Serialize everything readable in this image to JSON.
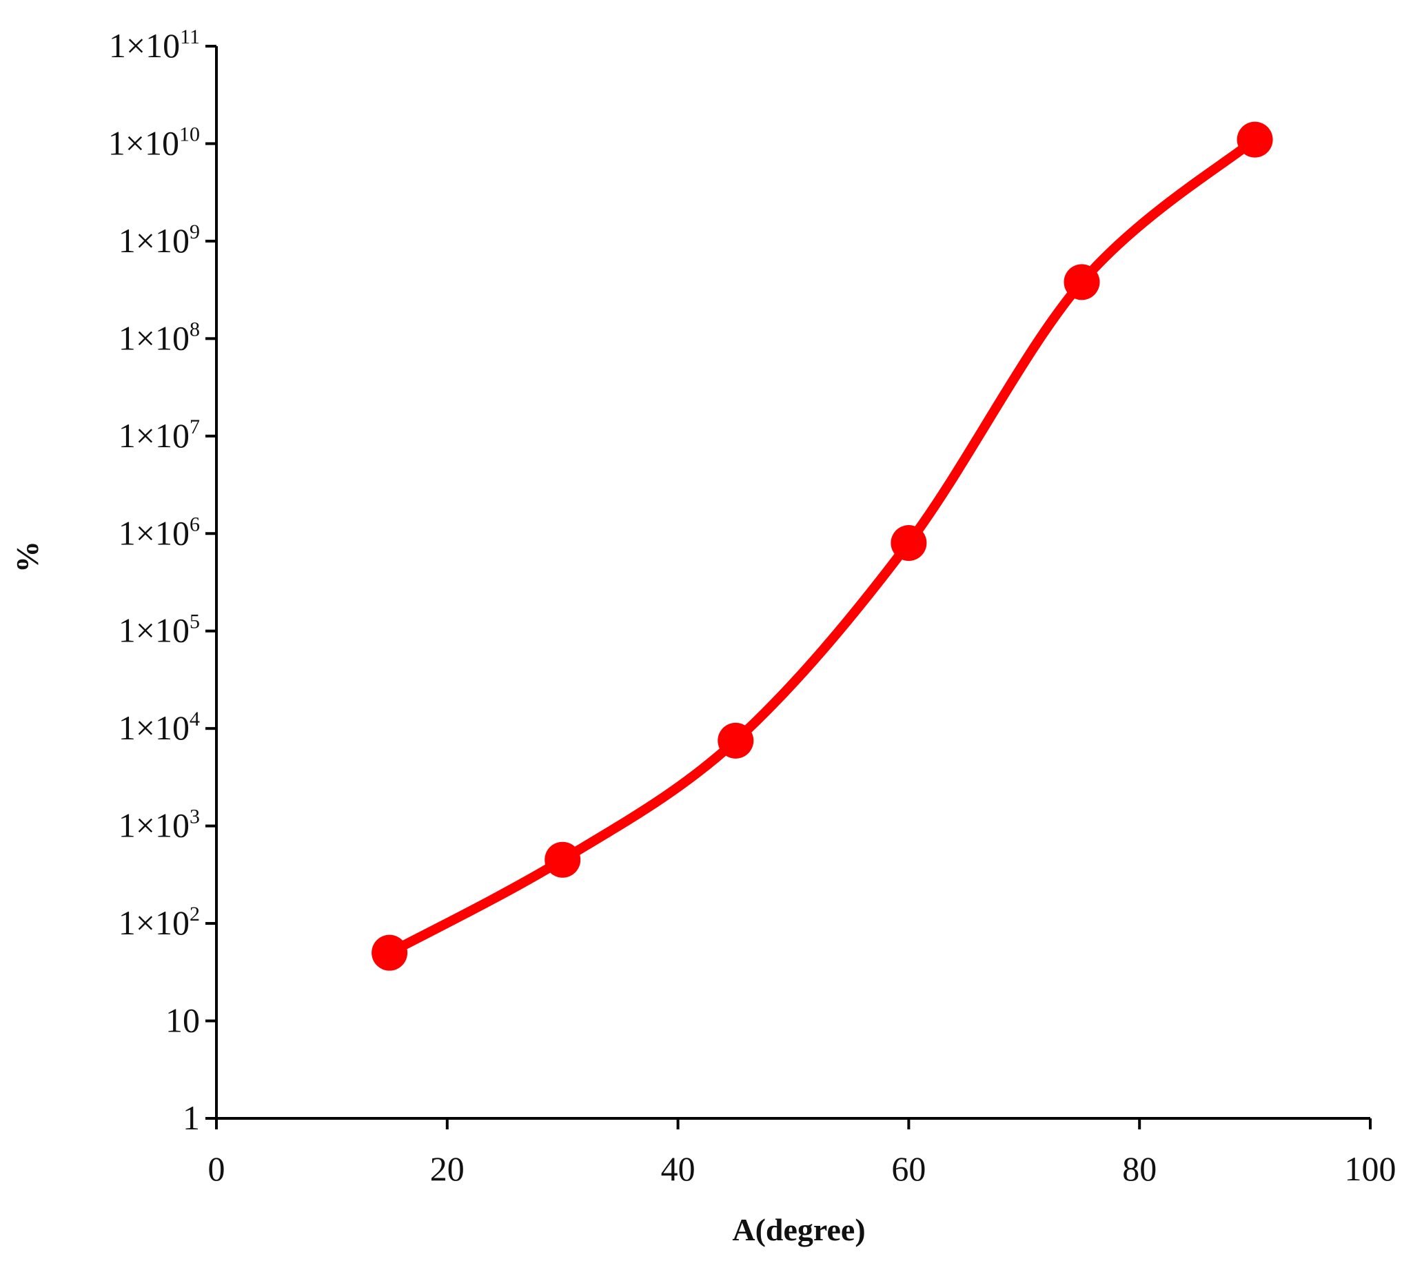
{
  "chart_data": {
    "type": "line",
    "title": "",
    "xlabel": "A(degree)",
    "ylabel": "%",
    "xlim": [
      0,
      100
    ],
    "ylim": [
      1,
      100000000000
    ],
    "y_scale": "log",
    "grid": false,
    "legend": "none",
    "smooth": true,
    "x_ticks": [
      "0",
      "20",
      "40",
      "60",
      "80",
      "100"
    ],
    "x_tick_values": [
      0,
      20,
      40,
      60,
      80,
      100
    ],
    "y_ticks": [
      {
        "value": 1,
        "base": "1",
        "exp": ""
      },
      {
        "value": 10,
        "base": "10",
        "exp": ""
      },
      {
        "value": 100,
        "base": "1×10",
        "exp": "2"
      },
      {
        "value": 1000,
        "base": "1×10",
        "exp": "3"
      },
      {
        "value": 10000,
        "base": "1×10",
        "exp": "4"
      },
      {
        "value": 100000,
        "base": "1×10",
        "exp": "5"
      },
      {
        "value": 1000000,
        "base": "1×10",
        "exp": "6"
      },
      {
        "value": 10000000,
        "base": "1×10",
        "exp": "7"
      },
      {
        "value": 100000000,
        "base": "1×10",
        "exp": "8"
      },
      {
        "value": 1000000000,
        "base": "1×10",
        "exp": "9"
      },
      {
        "value": 10000000000,
        "base": "1×10",
        "exp": "10"
      },
      {
        "value": 100000000000,
        "base": "1×10",
        "exp": "11"
      }
    ],
    "series": [
      {
        "color": "#ff0000",
        "x": [
          15,
          30,
          45,
          60,
          75,
          90
        ],
        "y": [
          50,
          450,
          7500,
          800000,
          380000000,
          11000000000
        ]
      }
    ]
  }
}
